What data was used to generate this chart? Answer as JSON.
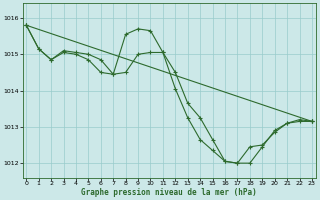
{
  "xlabel": "Graphe pression niveau de la mer (hPa)",
  "bg_color": "#cce8e8",
  "grid_color": "#99cccc",
  "line_color": "#2d6a2d",
  "marker": "+",
  "xlim": [
    0,
    23
  ],
  "ylim": [
    1011.6,
    1016.4
  ],
  "yticks": [
    1012,
    1013,
    1014,
    1015,
    1016
  ],
  "xticks": [
    0,
    1,
    2,
    3,
    4,
    5,
    6,
    7,
    8,
    9,
    10,
    11,
    12,
    13,
    14,
    15,
    16,
    17,
    18,
    19,
    20,
    21,
    22,
    23
  ],
  "line_straight": {
    "x": [
      0,
      23
    ],
    "y": [
      1015.8,
      1013.15
    ]
  },
  "line_wavy": {
    "x": [
      0,
      1,
      2,
      3,
      4,
      5,
      6,
      7,
      8,
      9,
      10,
      11,
      12,
      13,
      14,
      15,
      16,
      17,
      18,
      19,
      20,
      21,
      22,
      23
    ],
    "y": [
      1015.8,
      1015.15,
      1014.85,
      1015.1,
      1015.05,
      1015.0,
      1014.85,
      1014.45,
      1015.55,
      1015.7,
      1015.65,
      1015.05,
      1014.05,
      1013.25,
      1012.65,
      1012.35,
      1012.05,
      1012.0,
      1012.0,
      1012.45,
      1012.9,
      1013.1,
      1013.2,
      1013.15
    ]
  },
  "line_mid": {
    "x": [
      0,
      1,
      2,
      3,
      4,
      5,
      6,
      7,
      8,
      9,
      10,
      11,
      12,
      13,
      14,
      15,
      16,
      17,
      18,
      19,
      20,
      21,
      22,
      23
    ],
    "y": [
      1015.8,
      1015.15,
      1014.85,
      1015.05,
      1015.0,
      1014.85,
      1014.5,
      1014.45,
      1014.5,
      1015.0,
      1015.05,
      1015.05,
      1014.5,
      1013.65,
      1013.25,
      1012.65,
      1012.05,
      1012.0,
      1012.45,
      1012.5,
      1012.85,
      1013.1,
      1013.15,
      1013.15
    ]
  }
}
